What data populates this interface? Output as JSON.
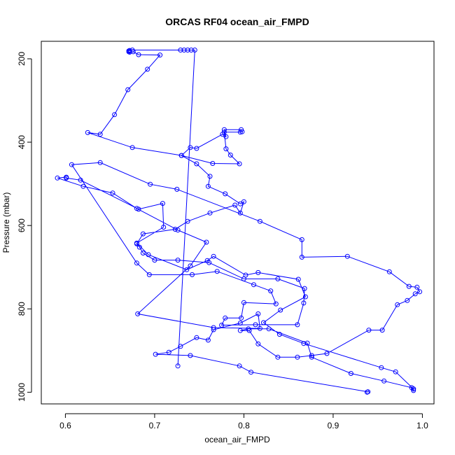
{
  "chart_data": {
    "type": "line",
    "title": "ORCAS RF04 ocean_air_FMPD",
    "xlabel": "ocean_air_FMPD",
    "ylabel": "Pressure (mbar)",
    "xlim": [
      0.573,
      1.013
    ],
    "ylim": [
      1028,
      158
    ],
    "y_reversed": true,
    "x_ticks": [
      0.6,
      0.7,
      0.8,
      0.9,
      1.0
    ],
    "x_tick_labels": [
      "0.6",
      "0.7",
      "0.8",
      "0.9",
      "1.0"
    ],
    "y_ticks": [
      200,
      400,
      600,
      800,
      1000
    ],
    "y_tick_labels": [
      "200",
      "400",
      "600",
      "800",
      "1000"
    ],
    "grid": false,
    "marker": "open-circle",
    "series": [
      {
        "color": "#0000ff",
        "x": [
          0.726,
          0.745,
          0.741,
          0.737,
          0.733,
          0.729,
          0.675,
          0.672,
          0.671,
          0.671,
          0.672,
          0.676,
          0.682,
          0.706,
          0.692,
          0.67,
          0.655,
          0.639,
          0.625,
          0.675,
          0.73,
          0.765,
          0.795,
          0.785,
          0.78,
          0.778,
          0.796,
          0.798,
          0.797,
          0.778,
          0.78,
          0.776,
          0.747,
          0.74,
          0.73,
          0.747,
          0.762,
          0.76,
          0.779,
          0.796,
          0.8,
          0.796,
          0.79,
          0.762,
          0.737,
          0.723,
          0.687,
          0.68,
          0.683,
          0.687,
          0.7,
          0.726,
          0.761,
          0.8,
          0.838,
          0.868,
          0.867,
          0.86,
          0.813,
          0.775,
          0.779,
          0.797,
          0.8,
          0.836,
          0.83,
          0.811,
          0.77,
          0.742,
          0.694,
          0.68,
          0.607,
          0.639,
          0.695,
          0.725,
          0.818,
          0.865,
          0.865,
          0.916,
          0.963,
          0.985,
          0.994,
          0.997,
          0.992,
          0.983,
          0.972,
          0.955,
          0.94,
          0.893,
          0.876,
          0.86,
          0.838,
          0.816,
          0.806,
          0.796,
          0.805,
          0.828,
          0.871,
          0.876,
          0.92,
          0.957,
          0.988,
          0.99,
          0.99,
          0.99,
          0.97,
          0.954,
          0.867,
          0.84,
          0.822,
          0.841,
          0.869,
          0.861,
          0.816,
          0.802,
          0.766,
          0.759,
          0.736,
          0.693,
          0.68,
          0.71,
          0.709,
          0.682,
          0.617,
          0.601,
          0.601,
          0.591,
          0.62,
          0.653,
          0.68,
          0.726,
          0.758,
          0.74,
          0.681,
          0.766,
          0.818,
          0.816,
          0.796,
          0.766,
          0.76,
          0.747,
          0.729,
          0.716,
          0.701,
          0.74,
          0.795,
          0.808,
          0.939,
          0.938
        ],
        "y": [
          937,
          179,
          179,
          179,
          179,
          179,
          179,
          180,
          181,
          183,
          184,
          183,
          190,
          191,
          225,
          274,
          334,
          381,
          377,
          413,
          432,
          451,
          452,
          431,
          416,
          376,
          376,
          375,
          370,
          370,
          387,
          381,
          415,
          413,
          432,
          452,
          482,
          506,
          524,
          548,
          543,
          570,
          551,
          570,
          590,
          609,
          620,
          644,
          652,
          666,
          683,
          683,
          689,
          728,
          728,
          751,
          786,
          838,
          838,
          839,
          822,
          822,
          785,
          788,
          757,
          742,
          710,
          718,
          718,
          690,
          454,
          449,
          501,
          513,
          590,
          634,
          676,
          674,
          711,
          746,
          748,
          759,
          764,
          780,
          790,
          851,
          851,
          907,
          912,
          916,
          916,
          884,
          852,
          852,
          848,
          848,
          882,
          916,
          955,
          973,
          989,
          996,
          992,
          992,
          951,
          941,
          883,
          861,
          833,
          803,
          771,
          729,
          713,
          719,
          674,
          684,
          706,
          670,
          642,
          604,
          547,
          561,
          491,
          486,
          484,
          486,
          506,
          522,
          559,
          611,
          640,
          697,
          812,
          845,
          847,
          812,
          834,
          850,
          875,
          869,
          890,
          904,
          909,
          912,
          937,
          952,
          999,
          1000
        ]
      }
    ]
  }
}
